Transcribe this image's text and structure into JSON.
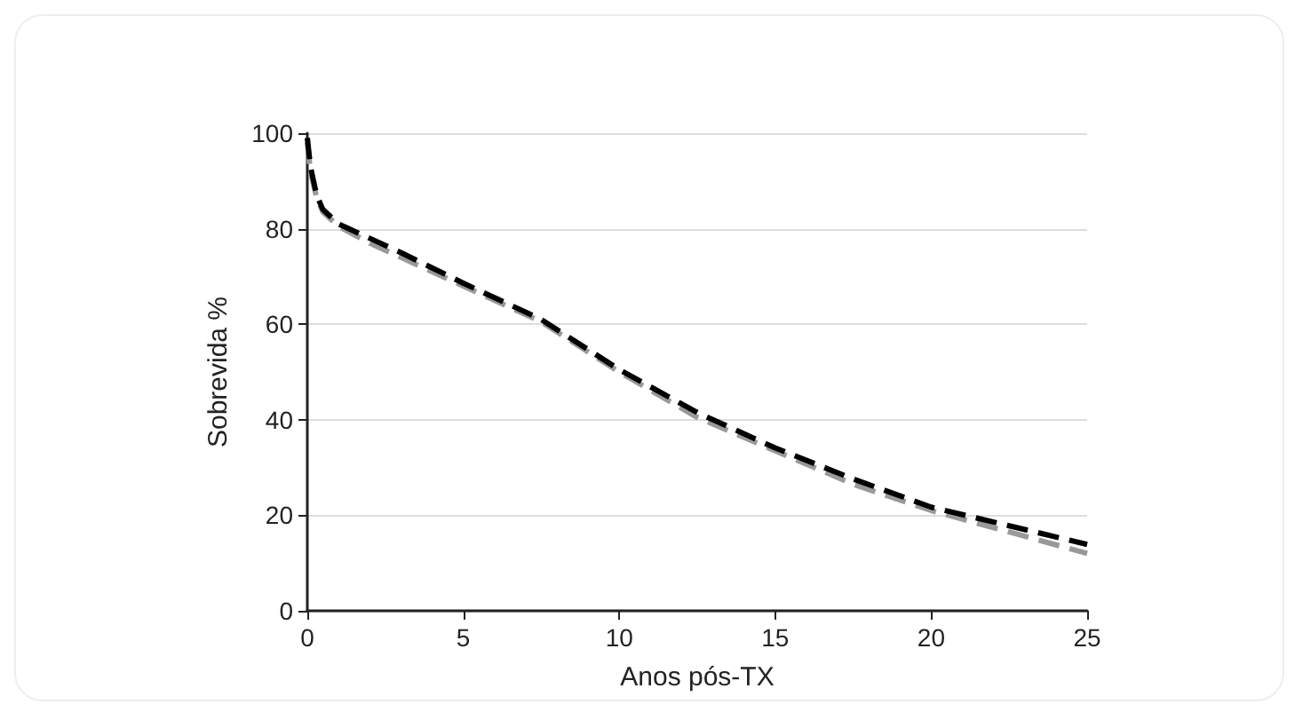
{
  "chart_data": {
    "type": "line",
    "xlabel": "Anos pós-TX",
    "ylabel": "Sobrevida %",
    "xlim": [
      0,
      25
    ],
    "xticks": [
      0,
      5,
      10,
      15,
      20,
      25
    ],
    "ylim": [
      0,
      100
    ],
    "yticks": [
      0,
      20,
      40,
      60,
      80,
      100
    ],
    "grid": "y",
    "line_style": "dashed",
    "marker": "none",
    "series": [
      {
        "color": "#999999",
        "x": [
          0,
          0.1,
          0.3,
          0.5,
          1,
          2,
          3,
          5,
          7.5,
          10,
          12.5,
          15,
          17.5,
          20,
          22.5,
          25
        ],
        "values": [
          98,
          92,
          86.5,
          83.5,
          80.5,
          77,
          74,
          68,
          60.5,
          50,
          40.5,
          33.5,
          26.5,
          21,
          16.5,
          12
        ]
      },
      {
        "color": "#000000",
        "x": [
          0,
          0.1,
          0.3,
          0.5,
          1,
          2,
          3,
          5,
          7.5,
          10,
          12.5,
          15,
          17.5,
          20,
          22.5,
          25
        ],
        "values": [
          99,
          93,
          87,
          84,
          81,
          78,
          75,
          68.6,
          61,
          50.5,
          41.5,
          34.1,
          27.6,
          21.7,
          17.8,
          13.9
        ]
      }
    ]
  }
}
